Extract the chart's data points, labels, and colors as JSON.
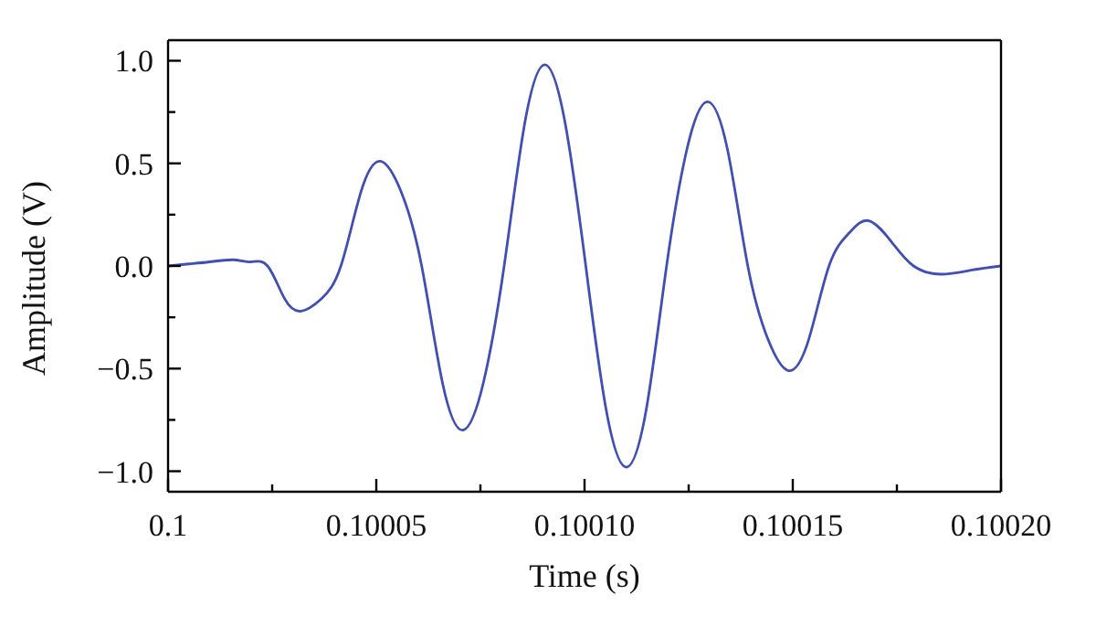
{
  "chart_data": {
    "type": "line",
    "xlabel": "Time (s)",
    "ylabel": "Amplitude (V)",
    "xlim": [
      0.1,
      0.1002
    ],
    "xticks": [
      0.1,
      {
        "value": 0.100025,
        "label": null
      },
      0.10005,
      {
        "value": 0.100075,
        "label": null
      },
      {
        "value": 0.1001,
        "label": "0.10010"
      },
      {
        "value": 0.100125,
        "label": null
      },
      0.10015,
      {
        "value": 0.100175,
        "label": null
      },
      {
        "value": 0.1002,
        "label": "0.10020"
      }
    ],
    "ylim": [
      -1.1,
      1.1
    ],
    "yticks": [
      {
        "value": -1,
        "label": "−1.0"
      },
      {
        "value": -0.75,
        "label": null
      },
      {
        "value": -0.5,
        "label": "−0.5"
      },
      {
        "value": -0.25,
        "label": null
      },
      {
        "value": 0,
        "label": "0.0"
      },
      {
        "value": 0.25,
        "label": null
      },
      0.5,
      {
        "value": 0.75,
        "label": null
      },
      {
        "value": 1,
        "label": "1.0"
      }
    ],
    "grid": false,
    "x": [
      0.1,
      0.100005,
      0.10001,
      0.1000158,
      0.1000199,
      0.1000239,
      0.100028,
      0.100032,
      0.1000368,
      0.1000415,
      0.1000463,
      0.100051,
      0.100056,
      0.1000609,
      0.1000659,
      0.1000708,
      0.1000757,
      0.1000807,
      0.1000856,
      0.1000905,
      0.1000954,
      0.1001003,
      0.1001051,
      0.10011,
      0.1001149,
      0.1001197,
      0.1001246,
      0.1001294,
      0.1001343,
      0.1001392,
      0.1001441,
      0.100149,
      0.1001538,
      0.1001587,
      0.1001635,
      0.1001683,
      0.100174,
      0.100179,
      0.1001855,
      0.100193,
      0.1002
    ],
    "series": [
      {
        "color": "#3f4fb3",
        "values": [
          0,
          0.01,
          0.02,
          0.03,
          0.02,
          0,
          -0.16,
          -0.22,
          -0.16,
          0,
          0.36,
          0.51,
          0.36,
          0,
          -0.57,
          -0.8,
          -0.57,
          0,
          0.69,
          0.98,
          0.69,
          0,
          -0.69,
          -0.98,
          -0.69,
          0,
          0.57,
          0.8,
          0.57,
          0,
          -0.36,
          -0.51,
          -0.36,
          0,
          0.16,
          0.22,
          0.11,
          0,
          -0.04,
          -0.02,
          0
        ]
      }
    ]
  }
}
